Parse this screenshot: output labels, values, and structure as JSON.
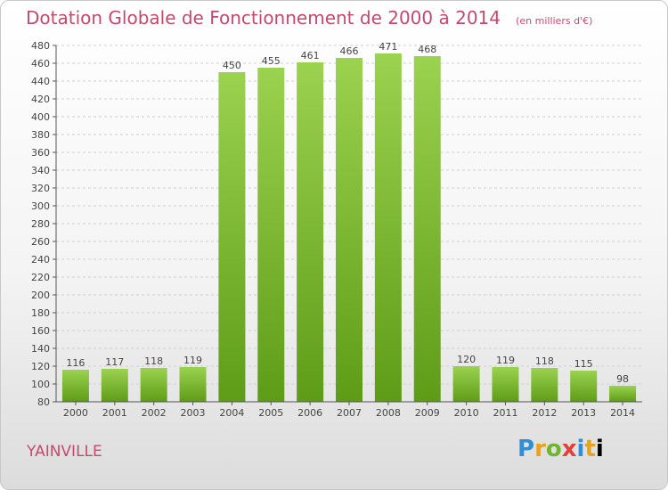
{
  "header": {
    "title": "Dotation Globale de Fonctionnement de 2000 à 2014",
    "unit": "(en milliers d'€)"
  },
  "footer": {
    "commune": "YAINVILLE",
    "logo": "Proxiti"
  },
  "colors": {
    "bar_top": "#9bd24f",
    "bar_bottom": "#5e9c18",
    "grid": "#cfcfcf",
    "title": "#c34a6e"
  },
  "chart_data": {
    "type": "bar",
    "title": "Dotation Globale de Fonctionnement de 2000 à 2014",
    "subtitle": "(en milliers d'€)",
    "xlabel": "",
    "ylabel": "",
    "categories": [
      "2000",
      "2001",
      "2002",
      "2003",
      "2004",
      "2005",
      "2006",
      "2007",
      "2008",
      "2009",
      "2010",
      "2011",
      "2012",
      "2013",
      "2014"
    ],
    "values": [
      116,
      117,
      118,
      119,
      450,
      455,
      461,
      466,
      471,
      468,
      120,
      119,
      118,
      115,
      98
    ],
    "ylim": [
      80,
      480
    ],
    "ytick_step": 20,
    "grid": true,
    "data_labels": true
  }
}
